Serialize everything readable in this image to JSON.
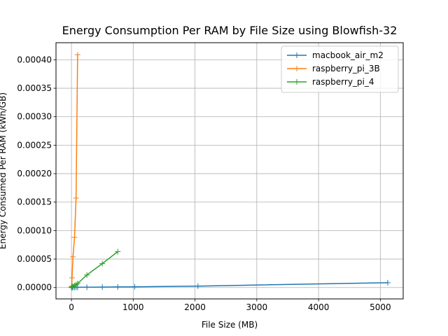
{
  "chart_data": {
    "type": "line",
    "title": "Energy Consumption Per RAM by File Size using Blowfish-32",
    "xlabel": "File Size (MB)",
    "ylabel": "Energy Consumed Per RAM (kWh/GB)",
    "xlim": [
      -250,
      5370
    ],
    "ylim": [
      -2e-05,
      0.00043
    ],
    "xticks": [
      0,
      1000,
      2000,
      3000,
      4000,
      5000
    ],
    "xtick_labels": [
      "0",
      "1000",
      "2000",
      "3000",
      "4000",
      "5000"
    ],
    "yticks": [
      0,
      5e-05,
      0.0001,
      0.00015,
      0.0002,
      0.00025,
      0.0003,
      0.00035,
      0.0004
    ],
    "ytick_labels": [
      "0.00000",
      "0.00005",
      "0.00010",
      "0.00015",
      "0.00020",
      "0.00025",
      "0.00030",
      "0.00035",
      "0.00040"
    ],
    "grid": true,
    "legend_position": "top-right",
    "marker": "+",
    "series": [
      {
        "name": "macbook_air_m2",
        "color": "#1f77b4",
        "x": [
          1,
          5,
          10,
          25,
          50,
          75,
          100,
          250,
          500,
          750,
          1024,
          2048,
          5120
        ],
        "y": [
          1e-07,
          1e-07,
          2e-07,
          2e-07,
          3e-07,
          3e-07,
          4e-07,
          6e-07,
          8e-07,
          1e-06,
          1.2e-06,
          2.5e-06,
          8.5e-06
        ]
      },
      {
        "name": "raspberry_pi_3B",
        "color": "#ff7f0e",
        "x": [
          1,
          5,
          10,
          25,
          50,
          75,
          100
        ],
        "y": [
          1e-06,
          2e-06,
          1.7e-05,
          5.4e-05,
          8.8e-05,
          0.000157,
          0.000409
        ]
      },
      {
        "name": "raspberry_pi_4",
        "color": "#2ca02c",
        "x": [
          1,
          5,
          10,
          25,
          50,
          75,
          100,
          250,
          500,
          750
        ],
        "y": [
          1e-07,
          5e-07,
          1e-06,
          2e-06,
          3.5e-06,
          5e-06,
          7e-06,
          2.2e-05,
          4.2e-05,
          6.3e-05
        ]
      }
    ]
  }
}
